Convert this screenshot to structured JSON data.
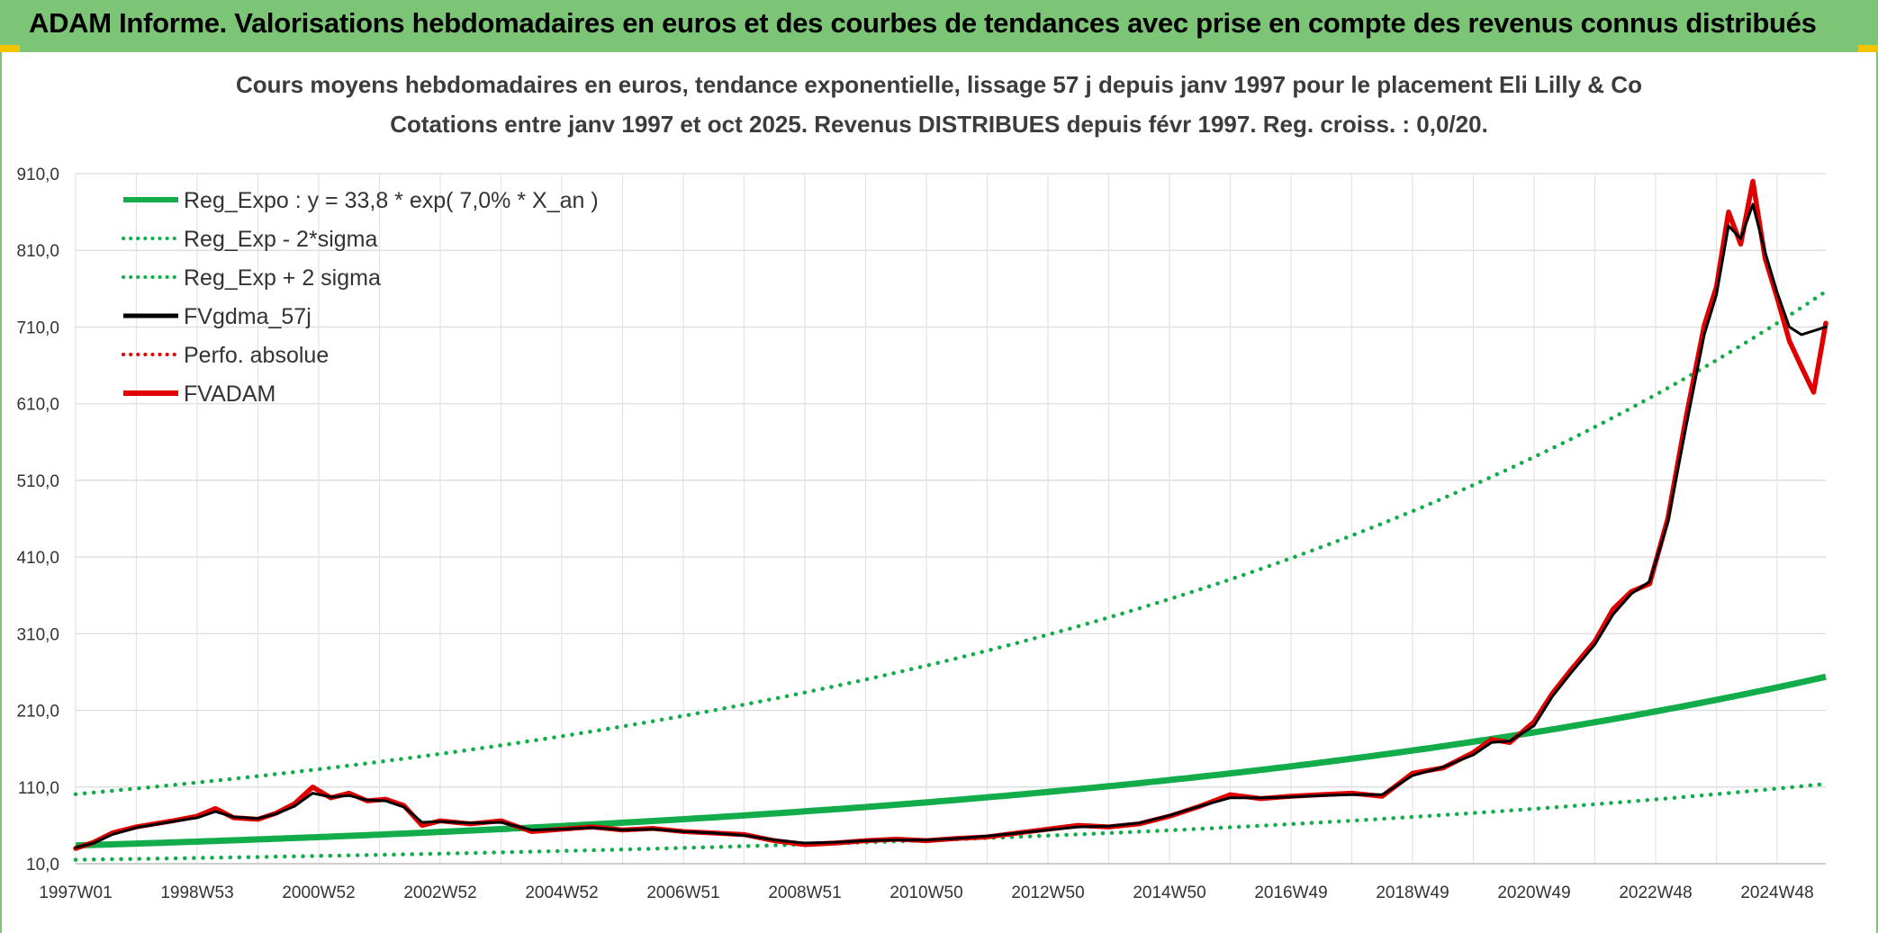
{
  "banner": {
    "title": "ADAM Informe. Valorisations hebdomadaires en euros et des courbes de tendances avec prise en compte des revenus connus distribués"
  },
  "chart_data": {
    "type": "line",
    "title": "Cours moyens hebdomadaires en euros, tendance exponentielle, lissage 57 j depuis janv 1997 pour le placement Eli Lilly & Co",
    "subtitle": "Cotations entre janv 1997 et oct 2025. Revenus DISTRIBUES depuis févr 1997. Reg. croiss. : 0,0/20.",
    "xlabel": "",
    "ylabel": "",
    "ylim": [
      10,
      910
    ],
    "xlim": [
      1997.0,
      2025.8
    ],
    "y_ticks": [
      "10,0",
      "110,0",
      "210,0",
      "310,0",
      "410,0",
      "510,0",
      "610,0",
      "710,0",
      "810,0",
      "910,0"
    ],
    "y_tick_values": [
      10,
      110,
      210,
      310,
      410,
      510,
      610,
      710,
      810,
      910
    ],
    "x_ticks": [
      "1997W01",
      "1998W53",
      "2000W52",
      "2002W52",
      "2004W52",
      "2006W51",
      "2008W51",
      "2010W50",
      "2012W50",
      "2014W50",
      "2016W49",
      "2018W49",
      "2020W49",
      "2022W48",
      "2024W48"
    ],
    "x_tick_values": [
      1997.0,
      1999.0,
      2001.0,
      2003.0,
      2005.0,
      2007.0,
      2009.0,
      2011.0,
      2013.0,
      2015.0,
      2017.0,
      2019.0,
      2021.0,
      2023.0,
      2025.0
    ],
    "grid": true,
    "legend_position": "top-left",
    "legend": [
      {
        "name": "Reg_Expo : y = 33,8 * exp( 7,0% *  X_an )",
        "color": "#12ad4a",
        "style": "solid-thick"
      },
      {
        "name": "Reg_Exp - 2*sigma",
        "color": "#12ad4a",
        "style": "dotted"
      },
      {
        "name": "Reg_Exp + 2 sigma",
        "color": "#12ad4a",
        "style": "dotted"
      },
      {
        "name": "FVgdma_57j",
        "color": "#000000",
        "style": "solid"
      },
      {
        "name": "Perfo. absolue",
        "color": "#e00000",
        "style": "dotted"
      },
      {
        "name": "FVADAM",
        "color": "#e00000",
        "style": "solid-thick"
      }
    ],
    "regression": {
      "a": 33.8,
      "rate": 0.07,
      "lower_factor": 0.45,
      "upper_factor": 2.98
    },
    "series": [
      {
        "name": "FVADAM",
        "color": "#e00000",
        "x": [
          1997.0,
          1997.3,
          1997.6,
          1998.0,
          1998.3,
          1998.6,
          1999.0,
          1999.3,
          1999.6,
          2000.0,
          2000.3,
          2000.6,
          2000.9,
          2001.2,
          2001.5,
          2001.8,
          2002.1,
          2002.4,
          2002.7,
          2003.0,
          2003.5,
          2004.0,
          2004.5,
          2005.0,
          2005.5,
          2006.0,
          2006.5,
          2007.0,
          2007.5,
          2008.0,
          2008.5,
          2009.0,
          2009.5,
          2010.0,
          2010.5,
          2011.0,
          2011.5,
          2012.0,
          2012.5,
          2013.0,
          2013.5,
          2014.0,
          2014.5,
          2015.0,
          2015.5,
          2016.0,
          2016.5,
          2017.0,
          2017.5,
          2018.0,
          2018.5,
          2019.0,
          2019.5,
          2020.0,
          2020.3,
          2020.6,
          2021.0,
          2021.3,
          2021.6,
          2022.0,
          2022.3,
          2022.6,
          2022.9,
          2023.2,
          2023.5,
          2023.8,
          2024.0,
          2024.2,
          2024.4,
          2024.6,
          2024.8,
          2025.0,
          2025.2,
          2025.4,
          2025.6,
          2025.8
        ],
        "values": [
          30,
          38,
          50,
          58,
          62,
          66,
          72,
          82,
          70,
          68,
          76,
          88,
          110,
          96,
          102,
          92,
          94,
          86,
          60,
          66,
          62,
          66,
          52,
          55,
          58,
          54,
          56,
          52,
          50,
          48,
          40,
          35,
          37,
          40,
          42,
          40,
          43,
          45,
          50,
          55,
          60,
          58,
          62,
          72,
          85,
          100,
          95,
          98,
          100,
          102,
          98,
          128,
          135,
          155,
          172,
          168,
          195,
          232,
          262,
          300,
          342,
          365,
          375,
          460,
          592,
          712,
          762,
          860,
          818,
          900,
          800,
          748,
          692,
          658,
          625,
          715
        ]
      },
      {
        "name": "FVgdma_57j",
        "color": "#000000",
        "x": [
          1997.0,
          1997.3,
          1997.6,
          1998.0,
          1998.3,
          1998.6,
          1999.0,
          1999.3,
          1999.6,
          2000.0,
          2000.3,
          2000.6,
          2000.9,
          2001.2,
          2001.5,
          2001.8,
          2002.1,
          2002.4,
          2002.7,
          2003.0,
          2003.5,
          2004.0,
          2004.5,
          2005.0,
          2005.5,
          2006.0,
          2006.5,
          2007.0,
          2007.5,
          2008.0,
          2008.5,
          2009.0,
          2009.5,
          2010.0,
          2010.5,
          2011.0,
          2011.5,
          2012.0,
          2012.5,
          2013.0,
          2013.5,
          2014.0,
          2014.5,
          2015.0,
          2015.5,
          2016.0,
          2016.5,
          2017.0,
          2017.5,
          2018.0,
          2018.5,
          2019.0,
          2019.5,
          2020.0,
          2020.3,
          2020.6,
          2021.0,
          2021.3,
          2021.6,
          2022.0,
          2022.3,
          2022.6,
          2022.9,
          2023.2,
          2023.5,
          2023.8,
          2024.0,
          2024.2,
          2024.4,
          2024.6,
          2024.8,
          2025.0,
          2025.2,
          2025.4,
          2025.6,
          2025.8
        ],
        "values": [
          31,
          37,
          48,
          57,
          61,
          65,
          70,
          78,
          71,
          69,
          75,
          85,
          102,
          97,
          99,
          93,
          92,
          84,
          64,
          65,
          63,
          64,
          54,
          55,
          57,
          54,
          55,
          52,
          50,
          47,
          41,
          37,
          38,
          40,
          41,
          41,
          43,
          46,
          50,
          54,
          58,
          59,
          63,
          73,
          85,
          96,
          96,
          97,
          99,
          100,
          100,
          125,
          136,
          152,
          168,
          170,
          190,
          228,
          258,
          296,
          335,
          362,
          378,
          455,
          580,
          700,
          752,
          842,
          825,
          870,
          808,
          755,
          710,
          700,
          705,
          710
        ]
      }
    ]
  }
}
